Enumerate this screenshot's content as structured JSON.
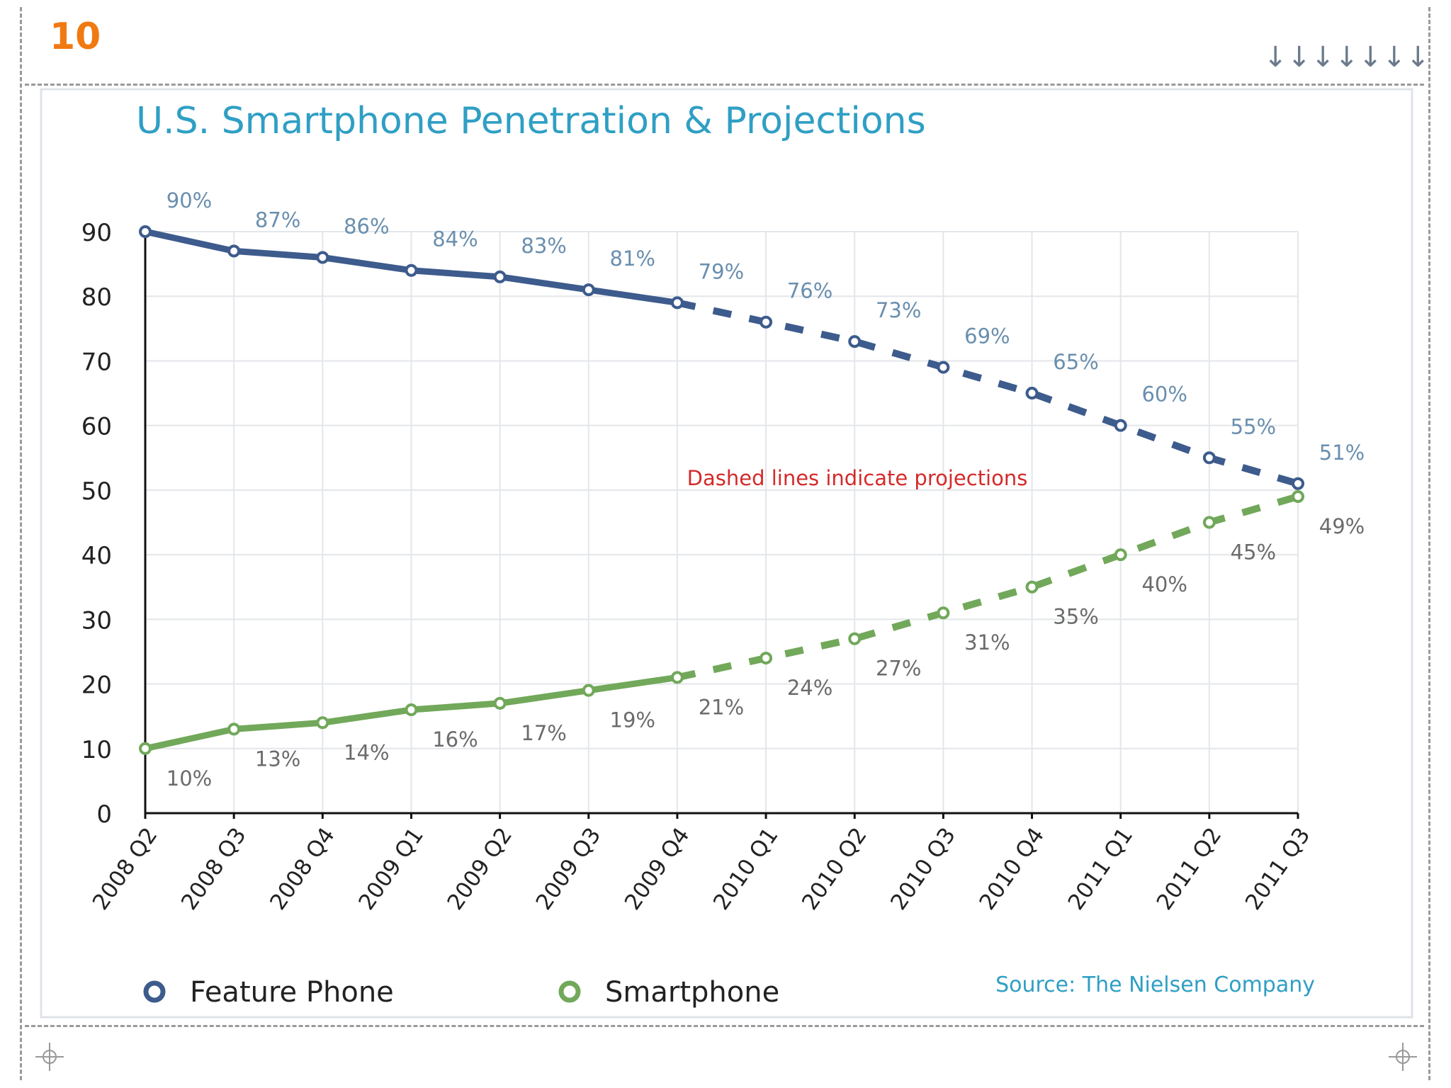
{
  "page": {
    "number": "10",
    "arrows": "↓↓↓↓↓↓↓"
  },
  "colors": {
    "feature": "#3d5b8c",
    "smart": "#71a85a",
    "title": "#2f9fc4",
    "note": "#d42a2a",
    "pageNum": "#f07a12"
  },
  "chart_data": {
    "type": "line",
    "title": "U.S. Smartphone Penetration & Projections",
    "categories": [
      "2008 Q2",
      "2008 Q3",
      "2008 Q4",
      "2009 Q1",
      "2009 Q2",
      "2009 Q3",
      "2009 Q4",
      "2010 Q1",
      "2010 Q2",
      "2010 Q3",
      "2010 Q4",
      "2011 Q1",
      "2011 Q2",
      "2011 Q3"
    ],
    "yticks": [
      "0",
      "10",
      "20",
      "30",
      "40",
      "50",
      "60",
      "70",
      "80",
      "90"
    ],
    "ylim": [
      0,
      90
    ],
    "projection_start_index": 6,
    "series": [
      {
        "name": "Feature Phone",
        "values": [
          90,
          87,
          86,
          84,
          83,
          81,
          79,
          76,
          73,
          69,
          65,
          60,
          55,
          51
        ],
        "labels": [
          "90%",
          "87%",
          "86%",
          "84%",
          "83%",
          "81%",
          "79%",
          "76%",
          "73%",
          "69%",
          "65%",
          "60%",
          "55%",
          "51%"
        ]
      },
      {
        "name": "Smartphone",
        "values": [
          10,
          13,
          14,
          16,
          17,
          19,
          21,
          24,
          27,
          31,
          35,
          40,
          45,
          49
        ],
        "labels": [
          "10%",
          "13%",
          "14%",
          "16%",
          "17%",
          "19%",
          "21%",
          "24%",
          "27%",
          "31%",
          "35%",
          "40%",
          "45%",
          "49%"
        ]
      }
    ],
    "annotation": "Dashed lines indicate projections",
    "source": "Source: The Nielsen Company",
    "legend": {
      "position": "bottom-left"
    }
  }
}
